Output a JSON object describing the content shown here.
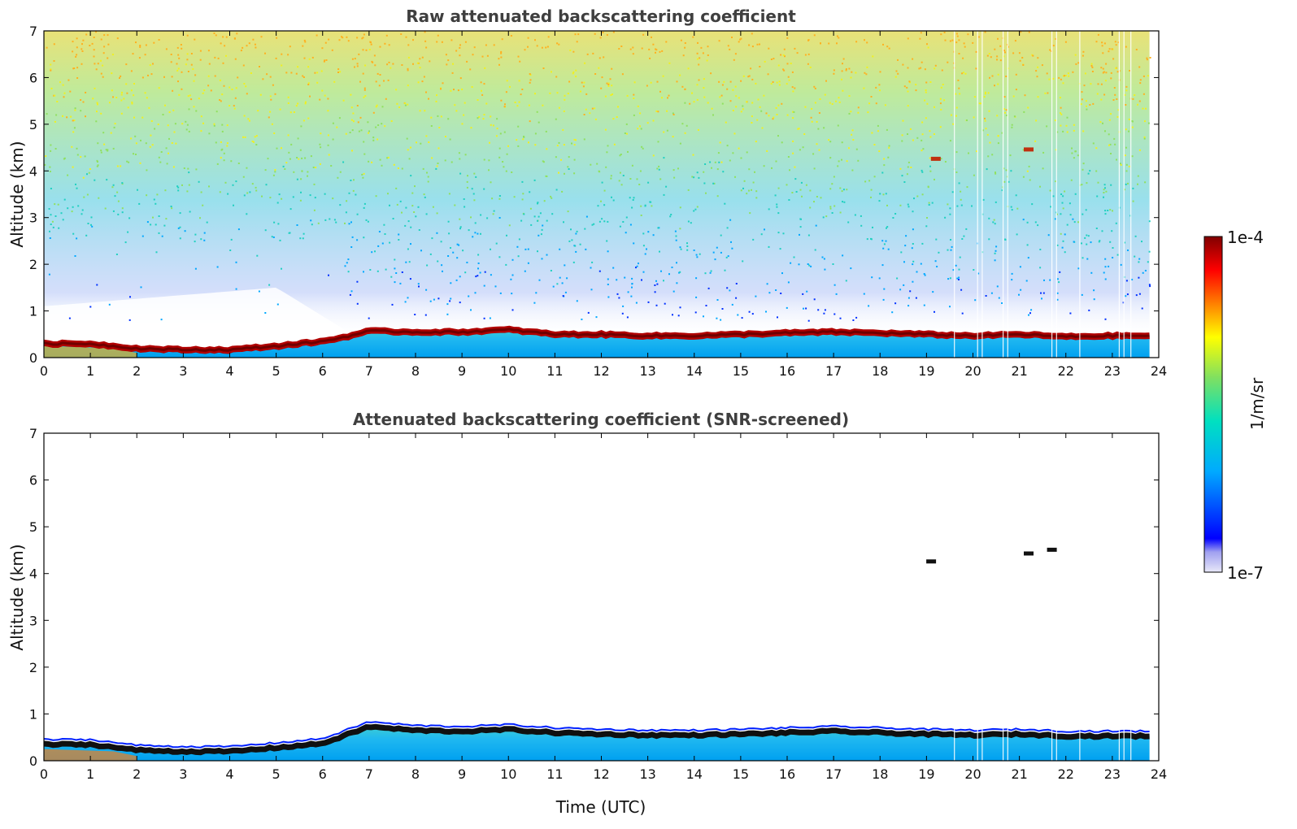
{
  "chart_data": [
    {
      "type": "heatmap",
      "title": "Raw attenuated backscattering coefficient",
      "xlabel": "",
      "ylabel": "Altitude (km)",
      "xlim": [
        0,
        24
      ],
      "ylim": [
        0,
        7
      ],
      "x_ticks": [
        "0",
        "1",
        "2",
        "3",
        "4",
        "5",
        "6",
        "7",
        "8",
        "9",
        "10",
        "11",
        "12",
        "13",
        "14",
        "15",
        "16",
        "17",
        "18",
        "19",
        "20",
        "21",
        "22",
        "23",
        "24"
      ],
      "y_ticks": [
        "0",
        "1",
        "2",
        "3",
        "4",
        "5",
        "6",
        "7"
      ],
      "data_end_time": 23.8,
      "layer_top_km": {
        "time": [
          0,
          1,
          2,
          3,
          4,
          5,
          6,
          6.5,
          7,
          8,
          9,
          10,
          11,
          12,
          13,
          14,
          15,
          16,
          17,
          18,
          19,
          20,
          21,
          22,
          23,
          23.8
        ],
        "altitude": [
          0.35,
          0.35,
          0.25,
          0.22,
          0.22,
          0.3,
          0.4,
          0.5,
          0.62,
          0.6,
          0.6,
          0.65,
          0.55,
          0.55,
          0.52,
          0.52,
          0.55,
          0.58,
          0.6,
          0.58,
          0.55,
          0.52,
          0.55,
          0.5,
          0.52,
          0.52
        ]
      },
      "elevated_features": [
        {
          "time": 19.2,
          "altitude_km": 4.25
        },
        {
          "time": 21.2,
          "altitude_km": 4.45
        }
      ]
    },
    {
      "type": "heatmap",
      "title": "Attenuated backscattering coefficient (SNR-screened)",
      "xlabel": "Time (UTC)",
      "ylabel": "Altitude (km)",
      "xlim": [
        0,
        24
      ],
      "ylim": [
        0,
        7
      ],
      "x_ticks": [
        "0",
        "1",
        "2",
        "3",
        "4",
        "5",
        "6",
        "7",
        "8",
        "9",
        "10",
        "11",
        "12",
        "13",
        "14",
        "15",
        "16",
        "17",
        "18",
        "19",
        "20",
        "21",
        "22",
        "23",
        "24"
      ],
      "y_ticks": [
        "0",
        "1",
        "2",
        "3",
        "4",
        "5",
        "6",
        "7"
      ],
      "data_end_time": 23.8,
      "layer_top_km": {
        "time": [
          0,
          1,
          2,
          3,
          4,
          5,
          6,
          6.5,
          7,
          8,
          9,
          10,
          11,
          12,
          13,
          14,
          15,
          16,
          17,
          18,
          19,
          20,
          21,
          22,
          23,
          23.8
        ],
        "altitude": [
          0.4,
          0.4,
          0.28,
          0.25,
          0.25,
          0.33,
          0.42,
          0.6,
          0.78,
          0.7,
          0.68,
          0.72,
          0.65,
          0.62,
          0.6,
          0.6,
          0.62,
          0.65,
          0.68,
          0.65,
          0.62,
          0.6,
          0.62,
          0.58,
          0.58,
          0.58
        ]
      },
      "elevated_features": [
        {
          "time": 19.1,
          "altitude_km": 4.25
        },
        {
          "time": 21.2,
          "altitude_km": 4.42
        },
        {
          "time": 21.7,
          "altitude_km": 4.5
        }
      ]
    }
  ],
  "colorbar": {
    "min_label": "1e-7",
    "max_label": "1e-4",
    "unit_label": "1/m/sr",
    "scale": "log",
    "colormap": [
      "#e8e8f8",
      "#0000ff",
      "#00aaff",
      "#00e0c0",
      "#80e060",
      "#ffff00",
      "#ff8000",
      "#ff0000",
      "#800000"
    ]
  }
}
